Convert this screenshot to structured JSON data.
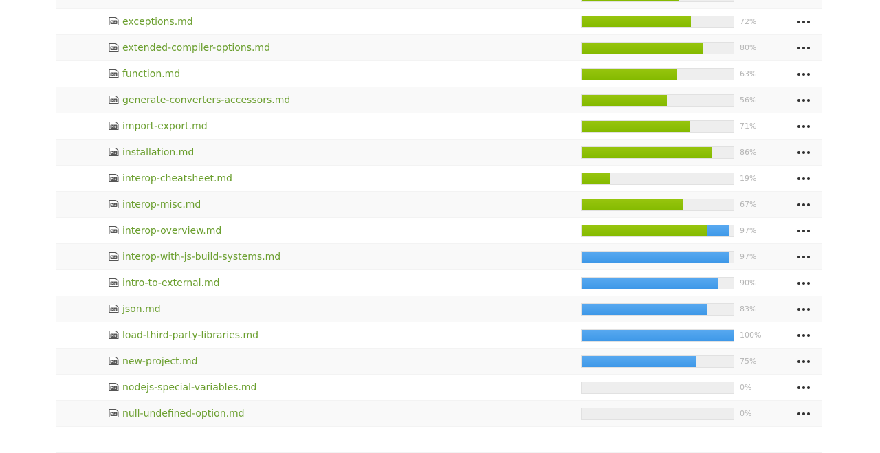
{
  "colors": {
    "link": "#6b9f2f",
    "approved": "#84ba00",
    "translated": "#4a9fec",
    "track": "#eeeeee",
    "percent_text": "#b5b5b5"
  },
  "files": [
    {
      "name": "",
      "approved": 0.64,
      "translated": 0.64,
      "percent": ""
    },
    {
      "name": "exceptions.md",
      "approved": 0.72,
      "translated": 0.72,
      "percent": "72%"
    },
    {
      "name": "extended-compiler-options.md",
      "approved": 0.8,
      "translated": 0.8,
      "percent": "80%"
    },
    {
      "name": "function.md",
      "approved": 0.63,
      "translated": 0.63,
      "percent": "63%"
    },
    {
      "name": "generate-converters-accessors.md",
      "approved": 0.56,
      "translated": 0.56,
      "percent": "56%"
    },
    {
      "name": "import-export.md",
      "approved": 0.71,
      "translated": 0.71,
      "percent": "71%"
    },
    {
      "name": "installation.md",
      "approved": 0.86,
      "translated": 0.86,
      "percent": "86%"
    },
    {
      "name": "interop-cheatsheet.md",
      "approved": 0.19,
      "translated": 0.19,
      "percent": "19%"
    },
    {
      "name": "interop-misc.md",
      "approved": 0.67,
      "translated": 0.67,
      "percent": "67%"
    },
    {
      "name": "interop-overview.md",
      "approved": 0.83,
      "translated": 0.97,
      "percent": "97%"
    },
    {
      "name": "interop-with-js-build-systems.md",
      "approved": 0,
      "translated": 0.97,
      "percent": "97%"
    },
    {
      "name": "intro-to-external.md",
      "approved": 0,
      "translated": 0.9,
      "percent": "90%"
    },
    {
      "name": "json.md",
      "approved": 0,
      "translated": 0.83,
      "percent": "83%"
    },
    {
      "name": "load-third-party-libraries.md",
      "approved": 0,
      "translated": 1.0,
      "percent": "100%"
    },
    {
      "name": "new-project.md",
      "approved": 0,
      "translated": 0.75,
      "percent": "75%"
    },
    {
      "name": "nodejs-special-variables.md",
      "approved": 0,
      "translated": 0,
      "percent": "0%"
    },
    {
      "name": "null-undefined-option.md",
      "approved": 0,
      "translated": 0,
      "percent": "0%"
    },
    {
      "name": "",
      "approved": 0,
      "translated": 0,
      "percent": ""
    }
  ]
}
